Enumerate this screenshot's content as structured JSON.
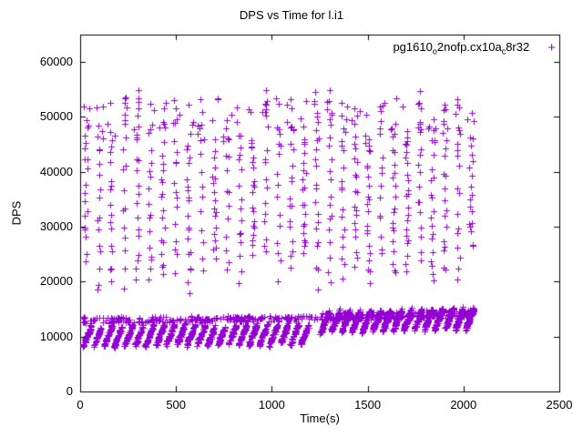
{
  "chart_data": {
    "type": "scatter",
    "title": "DPS vs Time for l.i1",
    "xlabel": "Time(s)",
    "ylabel": "DPS",
    "xlim": [
      0,
      2500
    ],
    "ylim": [
      0,
      65000
    ],
    "xticks": [
      0,
      500,
      1000,
      1500,
      2000,
      2500
    ],
    "yticks": [
      0,
      10000,
      20000,
      30000,
      40000,
      50000,
      60000
    ],
    "grid": false,
    "legend_position": "top-right-inside",
    "axis_color": "#000000",
    "series": [
      {
        "name": "pg1610_o2nofp.cx10a_c8r32",
        "label_segments": [
          {
            "text": "pg1610",
            "sub": false
          },
          {
            "text": "o",
            "sub": true
          },
          {
            "text": "2nofp.cx10a",
            "sub": false
          },
          {
            "text": "c",
            "sub": true
          },
          {
            "text": "8r32",
            "sub": false
          }
        ],
        "marker": "plus",
        "marker_char": "+",
        "color": "#9400d3",
        "points_model": {
          "seed": 20,
          "upper_columns": {
            "t_start": 30,
            "t_end": 2055,
            "t_step": 67,
            "x_jitter": 9,
            "y_floor_min": 18500,
            "y_floor_max": 26000,
            "y_top_min": 45000,
            "y_top_max": 55500,
            "y_jitter": 1200,
            "points_min": 12,
            "points_max": 20,
            "top_extra_points": 4,
            "top_extra_ymin": 44500,
            "top_extra_ymax": 53500,
            "top_extra_xjitter": 22
          },
          "lower_phases": [
            {
              "t_start": 15,
              "t_end": 1235,
              "streak_step": 54,
              "streak_width": 44,
              "y_start": 8200,
              "y_end": 12000,
              "y_jitter": 350,
              "y_drift": 300,
              "points_per_streak": 44,
              "band_y": 13000,
              "band_spread": 550,
              "band_points": 230
            },
            {
              "t_start": 1255,
              "t_end": 2065,
              "streak_step": 54,
              "streak_width": 44,
              "y_start": 10800,
              "y_end": 14600,
              "y_jitter": 400,
              "y_drift": 700,
              "points_per_streak": 62,
              "band_y": 13600,
              "band_spread": 700,
              "band_points": 220
            }
          ]
        }
      }
    ]
  }
}
